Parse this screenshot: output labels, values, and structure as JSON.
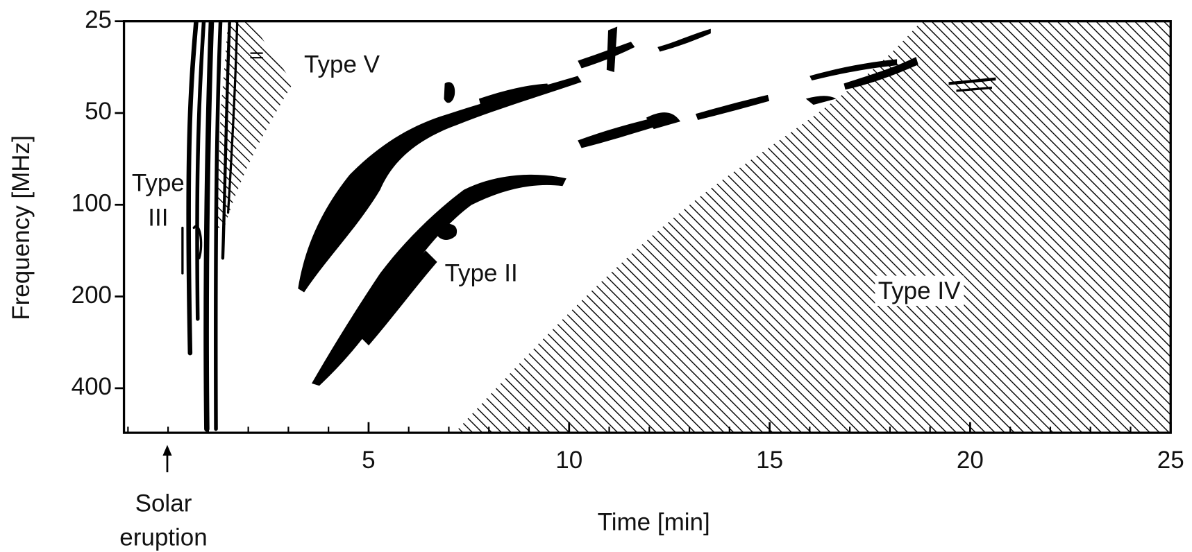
{
  "chart_data": {
    "type": "spectrum",
    "x_label": "Time [min]",
    "y_label": "Frequency [MHz]",
    "xlim": [
      -1.1,
      25
    ],
    "xticks": [
      5,
      10,
      15,
      20,
      25
    ],
    "xticks_minor": [
      -1,
      0,
      1,
      2,
      3,
      4,
      6,
      7,
      8,
      9,
      11,
      12,
      13,
      14,
      16,
      17,
      18,
      19,
      21,
      22,
      23,
      24
    ],
    "ylim": [
      560,
      25
    ],
    "log_y": true,
    "yticks": [
      25,
      50,
      100,
      200,
      400
    ],
    "annotations": [
      {
        "lines": [
          "Type V"
        ]
      },
      {
        "lines": [
          "Type",
          "III"
        ]
      },
      {
        "lines": [
          "Type II"
        ]
      },
      {
        "lines": [
          "Type IV"
        ]
      },
      {
        "lines": [
          "Solar",
          "eruption"
        ]
      }
    ]
  }
}
